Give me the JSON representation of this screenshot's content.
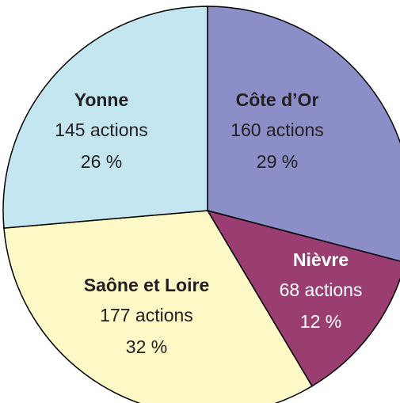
{
  "chart_data": {
    "type": "pie",
    "categories": [
      "Côte d’Or",
      "Nièvre",
      "Saône et Loire",
      "Yonne"
    ],
    "values": [
      160,
      68,
      177,
      145
    ],
    "value_labels": [
      "160 actions",
      "68 actions",
      "177 actions",
      "145 actions"
    ],
    "percent_labels": [
      "29 %",
      "12 %",
      "32 %",
      "26 %"
    ],
    "colors": [
      "#8b8ec7",
      "#9a3e72",
      "#fcf9c6",
      "#c4e6f0"
    ],
    "label_colors": [
      "#231f20",
      "#ffffff",
      "#231f20",
      "#231f20"
    ]
  }
}
